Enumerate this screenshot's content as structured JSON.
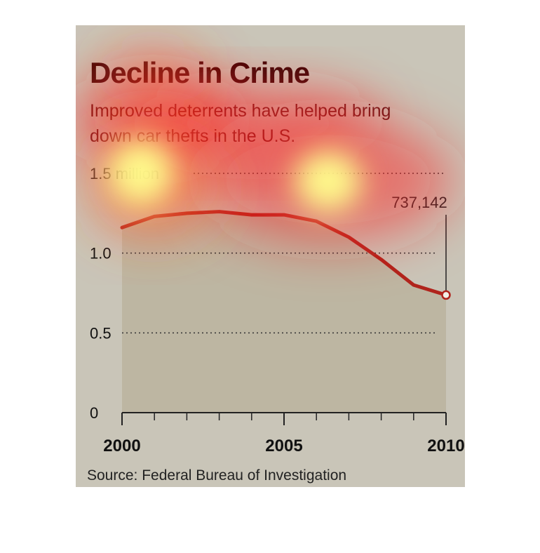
{
  "chart_data": {
    "type": "line",
    "title": "Decline in Crime",
    "subtitle": "Improved deterrents have helped bring down car thefts in the U.S.",
    "source": "Source: Federal Bureau of Investigation",
    "x": [
      2000,
      2001,
      2002,
      2003,
      2004,
      2005,
      2006,
      2007,
      2008,
      2009,
      2010
    ],
    "series": [
      {
        "values": [
          1.16,
          1.23,
          1.25,
          1.26,
          1.24,
          1.24,
          1.2,
          1.1,
          0.96,
          0.8,
          0.737142
        ]
      }
    ],
    "ylim": [
      0,
      1.5
    ],
    "yticks": [
      {
        "value": 0,
        "label": "0"
      },
      {
        "value": 0.5,
        "label": "0.5"
      },
      {
        "value": 1.0,
        "label": "1.0"
      },
      {
        "value": 1.5,
        "label": "1.5 million"
      }
    ],
    "xticks": [
      {
        "value": 2000,
        "label": "2000"
      },
      {
        "value": 2005,
        "label": "2005"
      },
      {
        "value": 2010,
        "label": "2010"
      }
    ],
    "annotation": {
      "x": 2010,
      "label": "737,142"
    },
    "grid": "dotted horizontal",
    "colors": {
      "line": "#b0241c",
      "area": "#bdb6a2",
      "background": "#c9c5b8",
      "title": "#3a0808"
    }
  },
  "heatmap_overlay": {
    "colors": {
      "hot": "#ffff8c",
      "mid": "#ff5a28",
      "cool": "#ff1e1e"
    }
  }
}
